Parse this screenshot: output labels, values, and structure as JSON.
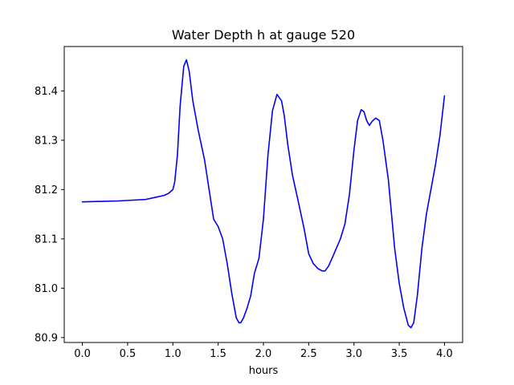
{
  "chart_data": {
    "type": "line",
    "title": "Water Depth h at gauge 520",
    "xlabel": "hours",
    "ylabel": "",
    "xlim": [
      -0.2,
      4.2
    ],
    "ylim": [
      80.89,
      81.49
    ],
    "xticks": [
      0.0,
      0.5,
      1.0,
      1.5,
      2.0,
      2.5,
      3.0,
      3.5,
      4.0
    ],
    "xtick_labels": [
      "0.0",
      "0.5",
      "1.0",
      "1.5",
      "2.0",
      "2.5",
      "3.0",
      "3.5",
      "4.0"
    ],
    "yticks": [
      80.9,
      81.0,
      81.1,
      81.2,
      81.3,
      81.4
    ],
    "ytick_labels": [
      "80.9",
      "81.0",
      "81.1",
      "81.2",
      "81.3",
      "81.4"
    ],
    "grid": false,
    "line_color": "#0000ff",
    "series": [
      {
        "x": [
          0.0,
          0.2,
          0.4,
          0.6,
          0.7,
          0.8,
          0.9,
          0.95,
          1.0,
          1.02,
          1.05,
          1.08,
          1.12,
          1.15,
          1.18,
          1.22,
          1.28,
          1.35,
          1.4,
          1.45,
          1.5,
          1.55,
          1.6,
          1.65,
          1.7,
          1.73,
          1.75,
          1.78,
          1.82,
          1.86,
          1.9,
          1.95,
          2.0,
          2.05,
          2.1,
          2.15,
          2.2,
          2.23,
          2.27,
          2.32,
          2.38,
          2.45,
          2.5,
          2.55,
          2.6,
          2.65,
          2.68,
          2.72,
          2.78,
          2.85,
          2.9,
          2.95,
          3.0,
          3.04,
          3.08,
          3.11,
          3.14,
          3.17,
          3.2,
          3.24,
          3.28,
          3.32,
          3.38,
          3.45,
          3.5,
          3.55,
          3.6,
          3.63,
          3.66,
          3.7,
          3.75,
          3.8,
          3.85,
          3.9,
          3.95,
          4.0
        ],
        "y": [
          81.175,
          81.176,
          81.177,
          81.179,
          81.18,
          81.184,
          81.188,
          81.192,
          81.2,
          81.215,
          81.27,
          81.37,
          81.45,
          81.463,
          81.44,
          81.38,
          81.32,
          81.26,
          81.2,
          81.14,
          81.125,
          81.1,
          81.05,
          80.99,
          80.94,
          80.93,
          80.93,
          80.94,
          80.96,
          80.985,
          81.03,
          81.06,
          81.14,
          81.27,
          81.36,
          81.393,
          81.38,
          81.35,
          81.29,
          81.23,
          81.18,
          81.12,
          81.07,
          81.05,
          81.04,
          81.035,
          81.035,
          81.045,
          81.07,
          81.1,
          81.13,
          81.19,
          81.28,
          81.34,
          81.362,
          81.358,
          81.34,
          81.33,
          81.338,
          81.345,
          81.34,
          81.3,
          81.22,
          81.08,
          81.01,
          80.96,
          80.925,
          80.92,
          80.93,
          80.985,
          81.08,
          81.15,
          81.2,
          81.25,
          81.31,
          81.39
        ]
      }
    ]
  }
}
